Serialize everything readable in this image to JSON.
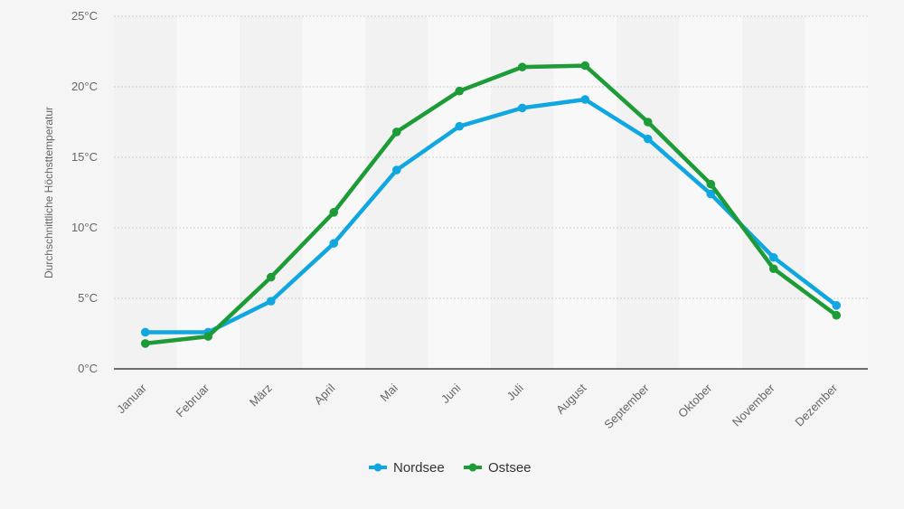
{
  "chart_data": {
    "type": "line",
    "categories": [
      "Januar",
      "Februar",
      "März",
      "April",
      "Mai",
      "Juni",
      "Juli",
      "August",
      "September",
      "Oktober",
      "November",
      "Dezember"
    ],
    "series": [
      {
        "name": "Nordsee",
        "color": "#10a7e0",
        "values": [
          2.6,
          2.6,
          4.8,
          8.9,
          14.1,
          17.2,
          18.5,
          19.1,
          16.3,
          12.4,
          7.9,
          4.5
        ]
      },
      {
        "name": "Ostsee",
        "color": "#1d9b36",
        "values": [
          1.8,
          2.3,
          6.5,
          11.1,
          16.8,
          19.7,
          21.4,
          21.5,
          17.5,
          13.1,
          7.1,
          3.8
        ]
      }
    ],
    "ylabel": "Durchschnittliche Höchsttemperatur",
    "yticks": [
      "0°C",
      "5°C",
      "10°C",
      "15°C",
      "20°C",
      "25°C"
    ],
    "ylim": [
      0,
      25
    ],
    "grid": true,
    "legend_position": "bottom-center"
  }
}
